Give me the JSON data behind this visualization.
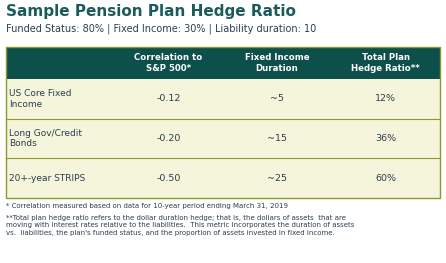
{
  "title": "Sample Pension Plan Hedge Ratio",
  "subtitle": "Funded Status: 80% | Fixed Income: 30% | Liability duration: 10",
  "title_color": "#1a5c5a",
  "subtitle_color": "#2c3e50",
  "header_bg": "#0d4f4a",
  "header_text_color": "#ffffff",
  "row_bg": "#f5f5dc",
  "divider_color": "#8b9a2a",
  "col_headers": [
    "Correlation to\nS&P 500*",
    "Fixed Income\nDuration",
    "Total Plan\nHedge Ratio**"
  ],
  "row_labels": [
    "US Core Fixed\nIncome",
    "Long Gov/Credit\nBonds",
    "20+-year STRIPS"
  ],
  "data": [
    [
      "-0.12",
      "~5",
      "12%"
    ],
    [
      "-0.20",
      "~15",
      "36%"
    ],
    [
      "-0.50",
      "~25",
      "60%"
    ]
  ],
  "footnote1": "* Correlation measured based on data for 10-year period ending March 31, 2019",
  "footnote2": "**Total plan hedge ratio refers to the dollar duration hedge; that is, the dollars of assets  that are\nmoving with interest rates relative to the liabilities.  This metric incorporates the duration of assets\nvs.  liabilities, the plan's funded status, and the proportion of assets invested in fixed income.",
  "bg_color": "#ffffff",
  "figsize": [
    4.46,
    2.63
  ],
  "dpi": 100
}
